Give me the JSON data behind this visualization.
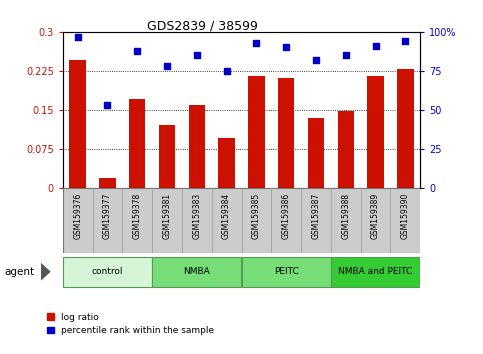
{
  "title": "GDS2839 / 38599",
  "samples": [
    "GSM159376",
    "GSM159377",
    "GSM159378",
    "GSM159381",
    "GSM159383",
    "GSM159384",
    "GSM159385",
    "GSM159386",
    "GSM159387",
    "GSM159388",
    "GSM159389",
    "GSM159390"
  ],
  "log_ratio": [
    0.245,
    0.018,
    0.17,
    0.12,
    0.16,
    0.095,
    0.215,
    0.212,
    0.135,
    0.148,
    0.215,
    0.228
  ],
  "percentile": [
    97,
    53,
    88,
    78,
    85,
    75,
    93,
    90,
    82,
    85,
    91,
    94
  ],
  "groups": [
    {
      "label": "control",
      "start": 0,
      "end": 3,
      "color": "#d6f5d6"
    },
    {
      "label": "NMBA",
      "start": 3,
      "end": 6,
      "color": "#77dd77"
    },
    {
      "label": "PEITC",
      "start": 6,
      "end": 9,
      "color": "#77dd77"
    },
    {
      "label": "NMBA and PEITC",
      "start": 9,
      "end": 12,
      "color": "#33cc33"
    }
  ],
  "bar_color": "#cc1100",
  "dot_color": "#0000cc",
  "left_axis_color": "#cc1100",
  "right_axis_color": "#0000cc",
  "ylim_left": [
    0,
    0.3
  ],
  "ylim_right": [
    0,
    100
  ],
  "yticks_left": [
    0,
    0.075,
    0.15,
    0.225,
    0.3
  ],
  "yticks_right": [
    0,
    25,
    50,
    75,
    100
  ],
  "ytick_labels_left": [
    "0",
    "0.075",
    "0.15",
    "0.225",
    "0.3"
  ],
  "ytick_labels_right": [
    "0",
    "25",
    "50",
    "75",
    "100%"
  ],
  "plot_bg_color": "#ffffff",
  "label_box_color": "#cccccc",
  "label_box_edge": "#999999",
  "agent_label": "agent",
  "legend_items": [
    "log ratio",
    "percentile rank within the sample"
  ]
}
